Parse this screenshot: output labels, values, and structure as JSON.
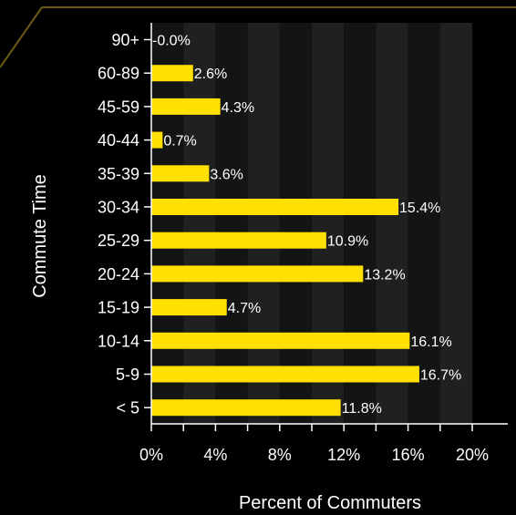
{
  "colors": {
    "background": "#000000",
    "bar": "#ffe000",
    "band_dark": "#141414",
    "band_light": "#202020",
    "frame": "#6b5a16",
    "axis": "#ffffff",
    "text": "#ffffff"
  },
  "chart_data": {
    "type": "bar",
    "orientation": "horizontal",
    "categories": [
      "< 5",
      "5-9",
      "10-14",
      "15-19",
      "20-24",
      "25-29",
      "30-34",
      "35-39",
      "40-44",
      "45-59",
      "60-89",
      "90+"
    ],
    "values": [
      11.8,
      16.7,
      16.1,
      4.7,
      13.2,
      10.9,
      15.4,
      3.6,
      0.7,
      4.3,
      2.6,
      0.0
    ],
    "data_labels": [
      "11.8%",
      "16.7%",
      "16.1%",
      "4.7%",
      "13.2%",
      "10.9%",
      "15.4%",
      "3.6%",
      "0.7%",
      "4.3%",
      "2.6%",
      "-0.0%"
    ],
    "xlabel": "Percent of Commuters",
    "ylabel": "Commute Time",
    "xlim": [
      0,
      20
    ],
    "xticks": [
      0,
      4,
      8,
      12,
      16,
      20
    ],
    "xtick_labels": [
      "0%",
      "4%",
      "8%",
      "12%",
      "16%",
      "20%"
    ],
    "grid": "alternating vertical bands",
    "legend": "none"
  }
}
